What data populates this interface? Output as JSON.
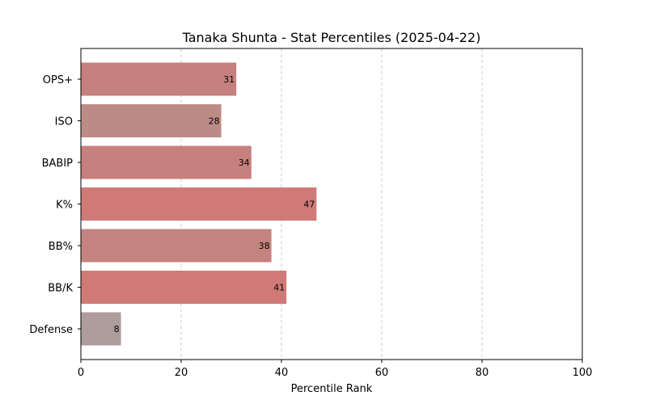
{
  "chart_data": {
    "type": "bar",
    "orientation": "horizontal",
    "title": "Tanaka Shunta - Stat Percentiles (2025-04-22)",
    "xlabel": "Percentile Rank",
    "ylabel": "",
    "xlim": [
      0,
      100
    ],
    "xticks": [
      0,
      20,
      40,
      60,
      80,
      100
    ],
    "grid": "vertical-dashed",
    "categories": [
      "OPS+",
      "ISO",
      "BABIP",
      "K%",
      "BB%",
      "BB/K",
      "Defense"
    ],
    "values": [
      31,
      28,
      34,
      47,
      38,
      41,
      8
    ],
    "colors": [
      "#c6807e",
      "#bd8b86",
      "#c6807e",
      "#d07a77",
      "#c4837f",
      "#d07a77",
      "#ae9d9c"
    ]
  }
}
